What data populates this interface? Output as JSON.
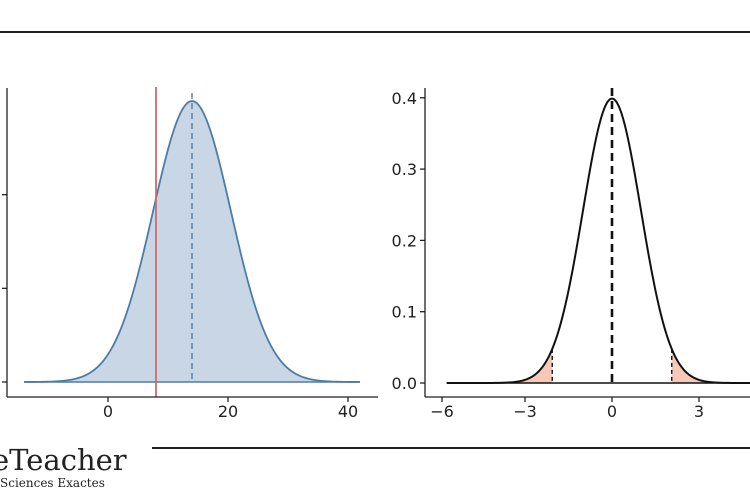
{
  "branding": {
    "title": "eTeacher",
    "subtitle": "Sciences Exactes"
  },
  "colors": {
    "left_fill": "#c8d6e5",
    "left_line": "#4d7ca6",
    "threshold_line": "#cd6b6b",
    "right_curve": "#111111",
    "tail_fill": "#f6c8b8",
    "frame": "#222222"
  },
  "chart_data": [
    {
      "type": "area",
      "distribution": "normal",
      "mean": 14,
      "sd": 6.5,
      "xlim": [
        -14,
        42
      ],
      "x_ticks": [
        "0",
        "20",
        "40"
      ],
      "x_tick_values": [
        0,
        20,
        40
      ],
      "y_ticks_visible": false,
      "vertical_lines": [
        {
          "x": 14,
          "style": "dashed",
          "color": "#4d7ca6"
        },
        {
          "x": 8,
          "style": "solid",
          "color": "#cd6b6b"
        }
      ],
      "grid": false
    },
    {
      "type": "line",
      "distribution": "standard-normal",
      "mean": 0,
      "sd": 1,
      "xlim": [
        -6,
        6
      ],
      "ylim": [
        0,
        0.4
      ],
      "x_ticks": [
        "−6",
        "−3",
        "0",
        "3"
      ],
      "x_tick_values": [
        -6,
        -3,
        0,
        3
      ],
      "y_ticks": [
        "0.0",
        "0.1",
        "0.2",
        "0.3",
        "0.4"
      ],
      "y_tick_values": [
        0,
        0.1,
        0.2,
        0.3,
        0.4
      ],
      "vertical_lines": [
        {
          "x": 0,
          "style": "dashed-bold"
        },
        {
          "x": -2.06,
          "style": "dashed"
        },
        {
          "x": 2.06,
          "style": "dashed"
        }
      ],
      "shaded_tails": [
        {
          "from": -6,
          "to": -2.06
        },
        {
          "from": 2.06,
          "to": 6
        }
      ],
      "grid": false
    }
  ]
}
